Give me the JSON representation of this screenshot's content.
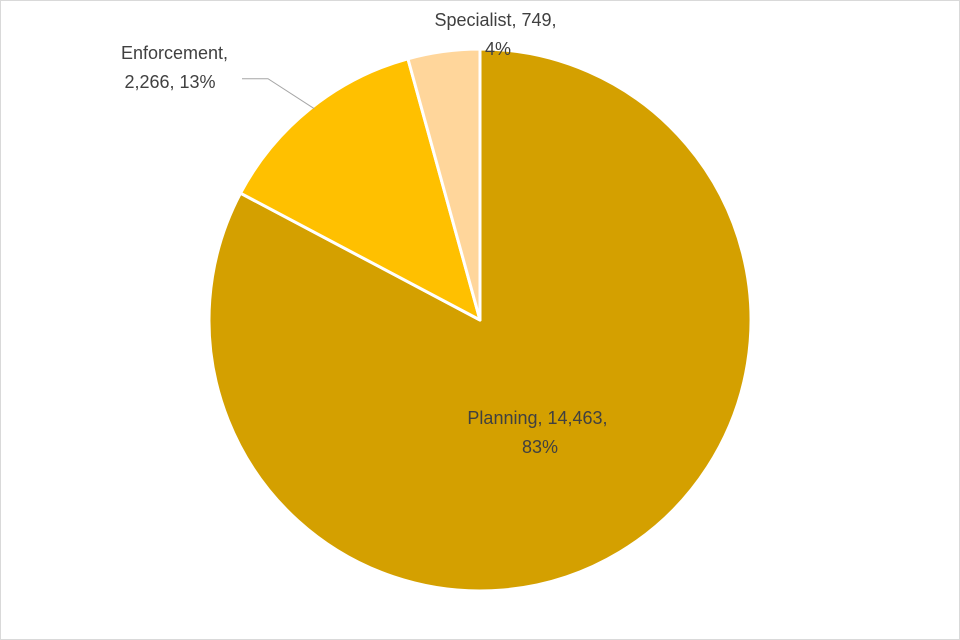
{
  "chart_data": {
    "type": "pie",
    "title": "",
    "start_angle_deg": 0,
    "direction": "clockwise",
    "slices": [
      {
        "name": "Planning",
        "value": 14463,
        "percent": "83%",
        "color": "#D4A000",
        "label_lines": [
          "Planning, 14,463,",
          "83%"
        ]
      },
      {
        "name": "Enforcement",
        "value": 2266,
        "percent": "13%",
        "color": "#FFC000",
        "label_lines": [
          "Enforcement,",
          "2,266, 13%"
        ]
      },
      {
        "name": "Specialist",
        "value": 749,
        "percent": "4%",
        "color": "#FFD69B",
        "label_lines": [
          "Specialist, 749,",
          "4%"
        ]
      }
    ],
    "legend": "none",
    "slice_border_color": "#ffffff",
    "leader_line_color": "#a6a6a6"
  }
}
